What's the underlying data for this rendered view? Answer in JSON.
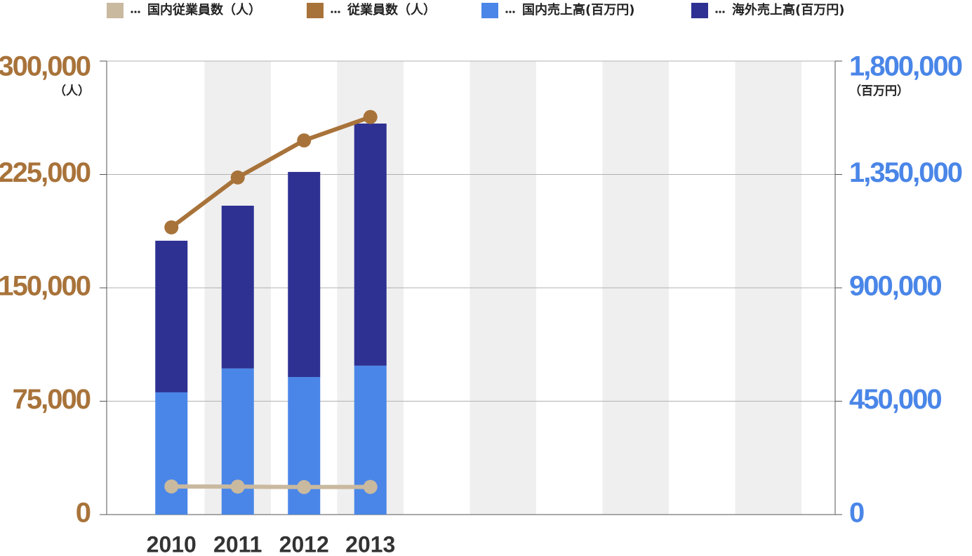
{
  "chart_data": {
    "type": "bar",
    "stacked": true,
    "categories": [
      "2010",
      "2011",
      "2012",
      "2013",
      null,
      null,
      null,
      null,
      null,
      null
    ],
    "y_unit": "（人）",
    "y2_unit": "（百万円）",
    "ylim": [
      0,
      300000
    ],
    "yticks": [
      {
        "value": 0,
        "label": "0"
      },
      {
        "value": 75000,
        "label": "75,000"
      },
      {
        "value": 150000,
        "label": "150,000"
      },
      {
        "value": 225000,
        "label": "225,000"
      },
      {
        "value": 300000,
        "label": "300,000"
      }
    ],
    "y2lim": [
      0,
      1800000
    ],
    "y2ticks": [
      {
        "value": 0,
        "label": "0"
      },
      {
        "value": 450000,
        "label": "450,000"
      },
      {
        "value": 900000,
        "label": "900,000"
      },
      {
        "value": 1350000,
        "label": "1,350,000"
      },
      {
        "value": 1800000,
        "label": "1,800,000"
      }
    ],
    "y_color": "#a8733a",
    "y2_color": "#4a86e8",
    "grid": true,
    "series": [
      {
        "name": "国内従業員数（人）",
        "type": "line",
        "axis": "y",
        "color": "#c9b99f",
        "values": [
          18600,
          18500,
          18200,
          18300,
          null,
          null,
          null,
          null,
          null,
          null
        ]
      },
      {
        "name": "従業員数（人）",
        "type": "line",
        "axis": "y",
        "color": "#a8733a",
        "values": [
          190000,
          223000,
          247500,
          263000,
          null,
          null,
          null,
          null,
          null,
          null
        ]
      },
      {
        "name": "国内売上高(百万円)",
        "type": "bar",
        "axis": "y2",
        "color": "#4a86e8",
        "values": [
          485000,
          580000,
          546000,
          591000,
          null,
          null,
          null,
          null,
          null,
          null
        ]
      },
      {
        "name": "海外売上高(百万円)",
        "type": "bar",
        "axis": "y2",
        "color": "#2e3192",
        "values": [
          602000,
          646000,
          814000,
          961000,
          null,
          null,
          null,
          null,
          null,
          null
        ]
      }
    ]
  }
}
